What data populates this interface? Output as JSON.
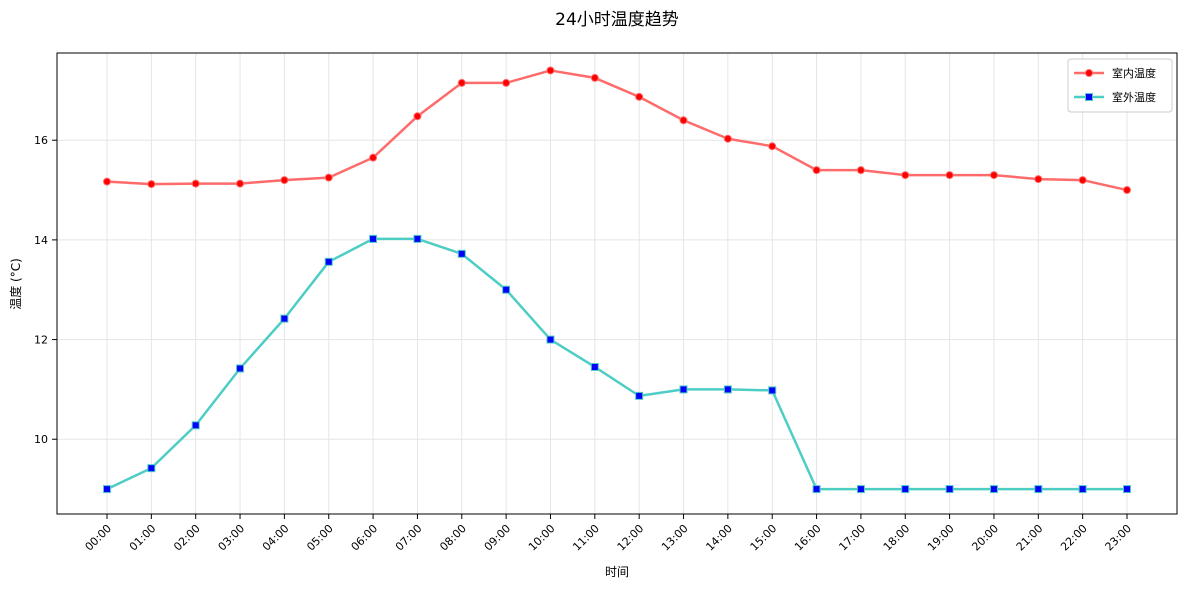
{
  "chart_data": {
    "type": "line",
    "title": "24小时温度趋势",
    "xlabel": "时间",
    "ylabel": "温度 (°C)",
    "categories": [
      "00:00",
      "01:00",
      "02:00",
      "03:00",
      "04:00",
      "05:00",
      "06:00",
      "07:00",
      "08:00",
      "09:00",
      "10:00",
      "11:00",
      "12:00",
      "13:00",
      "14:00",
      "15:00",
      "16:00",
      "17:00",
      "18:00",
      "19:00",
      "20:00",
      "21:00",
      "22:00",
      "23:00"
    ],
    "ylim": [
      8.5,
      17.75
    ],
    "yticks": [
      10,
      12,
      14,
      16
    ],
    "grid": true,
    "legend_position": "top-right",
    "series": [
      {
        "name": "室内温度",
        "color": "#ff6b6b",
        "marker": "circle",
        "marker_color": "#ff0000",
        "values": [
          15.17,
          15.12,
          15.13,
          15.13,
          15.2,
          15.25,
          15.65,
          16.48,
          17.15,
          17.15,
          17.4,
          17.25,
          16.87,
          16.4,
          16.03,
          15.88,
          15.4,
          15.4,
          15.3,
          15.3,
          15.3,
          15.22,
          15.2,
          15.0
        ]
      },
      {
        "name": "室外温度",
        "color": "#4ecdc4",
        "marker": "square",
        "marker_color": "#0000ff",
        "values": [
          9.0,
          9.42,
          10.28,
          11.42,
          12.42,
          13.56,
          14.02,
          14.02,
          13.72,
          13.0,
          12.0,
          11.45,
          10.87,
          11.0,
          11.0,
          10.98,
          9.0,
          9.0,
          9.0,
          9.0,
          9.0,
          9.0,
          9.0,
          9.0
        ]
      }
    ]
  }
}
